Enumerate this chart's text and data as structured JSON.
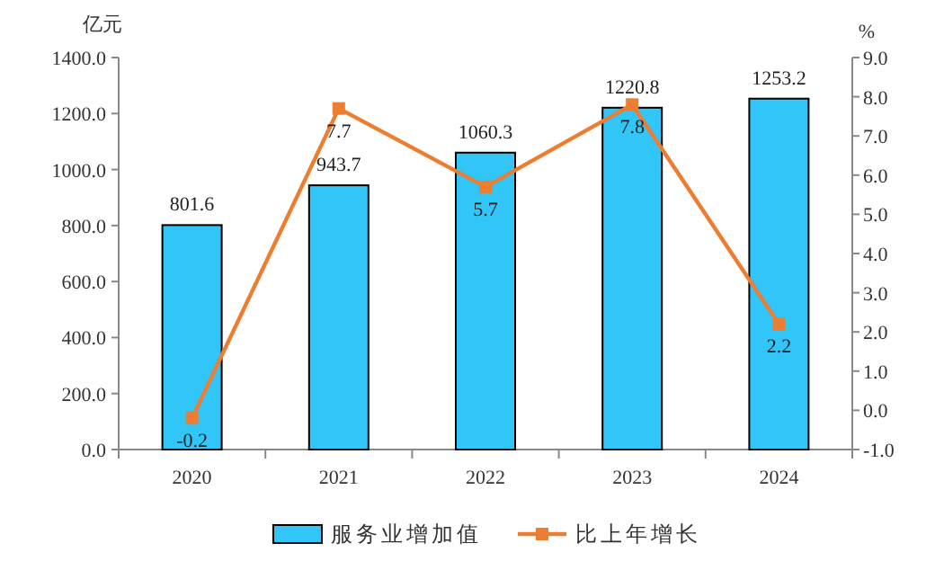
{
  "chart_data": {
    "type": "bar",
    "categories": [
      "2020",
      "2021",
      "2022",
      "2023",
      "2024"
    ],
    "ylabel": "亿元",
    "y2label": "%",
    "ylim": [
      0,
      1400
    ],
    "yticks": [
      {
        "value": 0,
        "label": "0.0"
      },
      {
        "value": 200,
        "label": "200.0"
      },
      {
        "value": 400,
        "label": "400.0"
      },
      {
        "value": 600,
        "label": "600.0"
      },
      {
        "value": 800,
        "label": "800.0"
      },
      {
        "value": 1000,
        "label": "1000.0"
      },
      {
        "value": 1200,
        "label": "1200.0"
      },
      {
        "value": 1400,
        "label": "1400.0"
      }
    ],
    "y2lim": [
      -1,
      9
    ],
    "y2ticks": [
      {
        "value": -1,
        "label": "-1.0"
      },
      {
        "value": 0,
        "label": "0.0"
      },
      {
        "value": 1,
        "label": "1.0"
      },
      {
        "value": 2,
        "label": "2.0"
      },
      {
        "value": 3,
        "label": "3.0"
      },
      {
        "value": 4,
        "label": "4.0"
      },
      {
        "value": 5,
        "label": "5.0"
      },
      {
        "value": 6,
        "label": "6.0"
      },
      {
        "value": 7,
        "label": "7.0"
      },
      {
        "value": 8,
        "label": "8.0"
      },
      {
        "value": 9,
        "label": "9.0"
      }
    ],
    "series": [
      {
        "name": "服务业增加值",
        "color": "#31c5f8",
        "values": [
          801.6,
          943.7,
          1060.3,
          1220.8,
          1253.2
        ]
      },
      {
        "name": "比上年增长",
        "type": "line",
        "axis": "y2",
        "color": "#ed7d31",
        "marker": "square",
        "values": [
          -0.2,
          7.7,
          5.7,
          7.8,
          2.2
        ]
      }
    ],
    "data_labels": true,
    "legend": "bottom",
    "grid": false
  }
}
